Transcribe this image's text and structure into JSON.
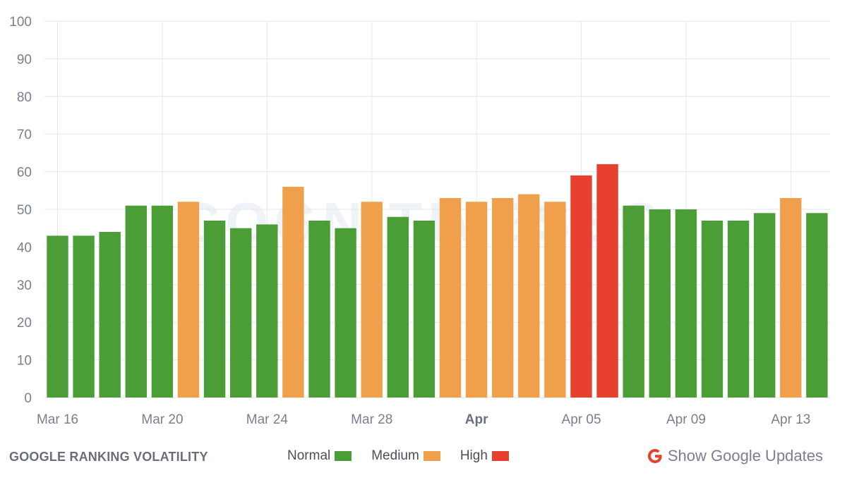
{
  "chart_data": {
    "type": "bar",
    "title": "GOOGLE RANKING VOLATILITY",
    "categories": [
      "Mar 16",
      "Mar 17",
      "Mar 18",
      "Mar 19",
      "Mar 20",
      "Mar 21",
      "Mar 22",
      "Mar 23",
      "Mar 24",
      "Mar 25",
      "Mar 26",
      "Mar 27",
      "Mar 28",
      "Mar 29",
      "Mar 30",
      "Mar 31",
      "Apr 01",
      "Apr 02",
      "Apr 03",
      "Apr 04",
      "Apr 05",
      "Apr 06",
      "Apr 07",
      "Apr 08",
      "Apr 09",
      "Apr 10",
      "Apr 11",
      "Apr 12",
      "Apr 13",
      "Apr 14"
    ],
    "values": [
      43,
      43,
      44,
      51,
      51,
      52,
      47,
      45,
      46,
      56,
      47,
      45,
      52,
      48,
      47,
      53,
      52,
      53,
      54,
      52,
      59,
      62,
      51,
      50,
      50,
      47,
      47,
      49,
      53,
      49
    ],
    "levels": [
      "normal",
      "normal",
      "normal",
      "normal",
      "normal",
      "medium",
      "normal",
      "normal",
      "normal",
      "medium",
      "normal",
      "normal",
      "medium",
      "normal",
      "normal",
      "medium",
      "medium",
      "medium",
      "medium",
      "medium",
      "high",
      "high",
      "normal",
      "normal",
      "normal",
      "normal",
      "normal",
      "normal",
      "medium",
      "normal"
    ],
    "x_tick_labels": [
      {
        "index": 0,
        "label": "Mar 16",
        "bold": false
      },
      {
        "index": 4,
        "label": "Mar 20",
        "bold": false
      },
      {
        "index": 8,
        "label": "Mar 24",
        "bold": false
      },
      {
        "index": 12,
        "label": "Mar 28",
        "bold": false
      },
      {
        "index": 16,
        "label": "Apr",
        "bold": true
      },
      {
        "index": 20,
        "label": "Apr 05",
        "bold": false
      },
      {
        "index": 24,
        "label": "Apr 09",
        "bold": false
      },
      {
        "index": 28,
        "label": "Apr 13",
        "bold": false
      }
    ],
    "y_ticks": [
      0,
      10,
      20,
      30,
      40,
      50,
      60,
      70,
      80,
      90,
      100
    ],
    "ylim": [
      0,
      100
    ],
    "xlabel": "",
    "ylabel": "",
    "grid": true,
    "legend": {
      "placement": "bottom-center",
      "entries": [
        {
          "key": "normal",
          "label": "Normal",
          "color": "#4a9e35"
        },
        {
          "key": "medium",
          "label": "Medium",
          "color": "#f0a04b"
        },
        {
          "key": "high",
          "label": "High",
          "color": "#e8402f"
        }
      ]
    },
    "watermark": "COGNITIVESEO"
  },
  "footer": {
    "title": "GOOGLE RANKING VOLATILITY",
    "show_updates_label": "Show Google Updates",
    "google_icon": "google-g-icon",
    "google_icon_color": "#e8402f"
  }
}
